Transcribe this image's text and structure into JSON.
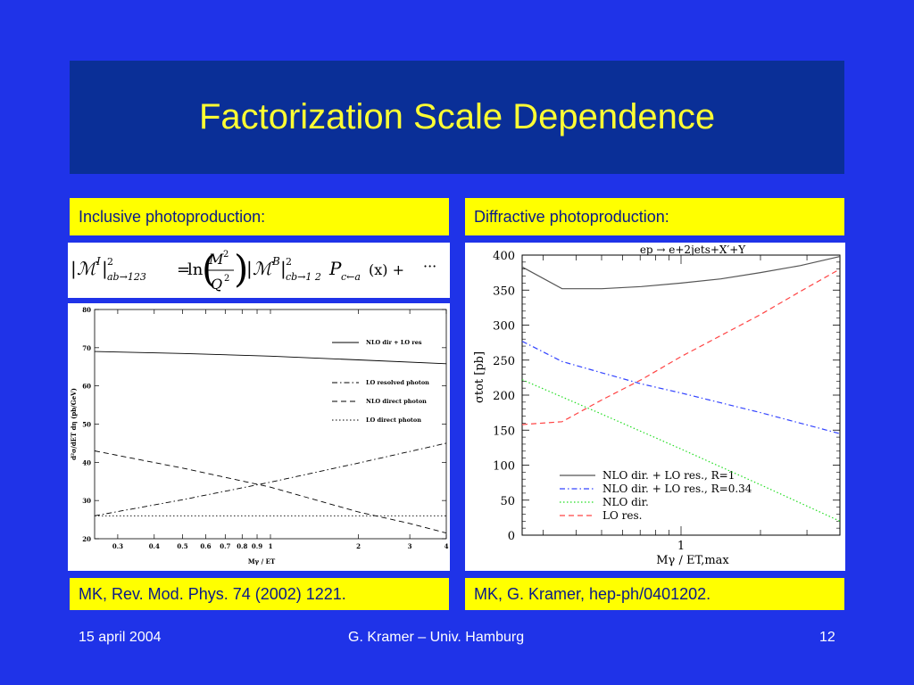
{
  "title": "Factorization Scale Dependence",
  "left": {
    "label": "Inclusive photoproduction:",
    "formula": {
      "lhs_sub": "ab→123",
      "rhs_sub": "cb→1 2",
      "pc_sub": "c←a",
      "frac_num": "M",
      "frac_den": "Q",
      "tail": "(x) +",
      "ellipsis": "···"
    },
    "citation": "MK, Rev. Mod. Phys. 74 (2002) 1221."
  },
  "right": {
    "label": "Diffractive photoproduction:",
    "citation": "MK, G. Kramer, hep-ph/0401202."
  },
  "footer": {
    "date": "15 april 2004",
    "author": "G. Kramer – Univ. Hamburg",
    "page": "12"
  },
  "chart_data": [
    {
      "type": "line",
      "xscale": "log",
      "xlim": [
        0.25,
        4
      ],
      "ylim": [
        20,
        80
      ],
      "xlabel": "Mγ / ET",
      "ylabel": "d²σ/dET dη (pb/GeV)",
      "xticks": [
        "0.3",
        "0.4",
        "0.5",
        "0.6",
        "0.7",
        "0.8",
        "0.9",
        "1",
        "2",
        "3",
        "4"
      ],
      "yticks": [
        "20",
        "30",
        "40",
        "50",
        "60",
        "70",
        "80"
      ],
      "legend": "top-right",
      "series": [
        {
          "name": "NLO dir + LO res",
          "style": "solid",
          "x": [
            0.25,
            0.5,
            1,
            2,
            4
          ],
          "y": [
            69,
            68.5,
            67.8,
            66.8,
            65.8
          ]
        },
        {
          "name": "LO   resolved photon",
          "style": "dashdot",
          "x": [
            0.25,
            0.5,
            1,
            2,
            4
          ],
          "y": [
            26,
            30.2,
            34.8,
            39.8,
            45
          ]
        },
        {
          "name": "NLO direct photon",
          "style": "dashed",
          "x": [
            0.25,
            0.5,
            1,
            2,
            3,
            4
          ],
          "y": [
            43,
            38.5,
            33.5,
            27,
            24,
            21.5
          ]
        },
        {
          "name": "LO   direct photon",
          "style": "dotted",
          "x": [
            0.25,
            4
          ],
          "y": [
            26,
            26
          ]
        }
      ]
    },
    {
      "type": "line",
      "xscale": "log",
      "xlim": [
        0.25,
        4
      ],
      "ylim": [
        0,
        400
      ],
      "title": "ep → e+2jets+X′+Y",
      "xlabel": "Mγ / ET,max",
      "ylabel": "σtot [pb]",
      "xticks": [
        "1"
      ],
      "yticks": [
        "0",
        "50",
        "100",
        "150",
        "200",
        "250",
        "300",
        "350",
        "400"
      ],
      "legend": "bottom-left",
      "series": [
        {
          "name": "NLO dir. + LO res., R=1",
          "color": "#555555",
          "style": "solid",
          "x": [
            0.25,
            0.354,
            0.5,
            0.707,
            1,
            1.414,
            2,
            2.828,
            4
          ],
          "y": [
            383,
            352,
            352,
            355,
            360,
            366,
            375,
            385,
            398
          ]
        },
        {
          "name": "NLO dir. + LO res., R=0.34",
          "color": "#3344ff",
          "style": "dashdot",
          "x": [
            0.25,
            0.354,
            0.5,
            0.707,
            1,
            1.414,
            2,
            2.828,
            4
          ],
          "y": [
            277,
            248,
            232,
            216,
            203,
            189,
            175,
            160,
            145
          ]
        },
        {
          "name": "NLO dir.",
          "color": "#22dd22",
          "style": "dotted",
          "x": [
            0.25,
            0.5,
            1,
            2,
            4
          ],
          "y": [
            222,
            173,
            123,
            72,
            20
          ]
        },
        {
          "name": "LO res.",
          "color": "#ff4444",
          "style": "dashed",
          "x": [
            0.25,
            0.354,
            0.5,
            0.707,
            1,
            1.414,
            2,
            2.828,
            4
          ],
          "y": [
            158,
            162,
            193,
            222,
            255,
            285,
            315,
            348,
            380
          ]
        }
      ]
    }
  ]
}
